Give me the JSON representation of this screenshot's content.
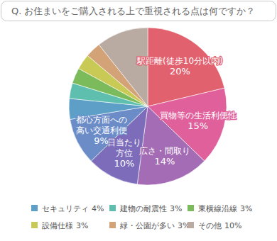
{
  "chart_data": {
    "type": "pie",
    "title": "Q. お住まいをご購入される上で重視される点は何ですか？",
    "categories": [
      "駅距離(徒歩10分以内)",
      "買物等の生活利便性",
      "広さ・間取り",
      "日当たり\n方位",
      "都心方面への\n高い交通利便",
      "セキュリティ",
      "建物の耐震性",
      "東横線沿線",
      "設備仕様",
      "緑・公園が多い",
      "その他"
    ],
    "values": [
      20,
      15,
      14,
      10,
      9,
      4,
      3,
      3,
      3,
      3,
      10
    ],
    "value_labels": [
      "20%",
      "15%",
      "14%",
      "10%",
      "9%",
      "4%",
      "3%",
      "3%",
      "3%",
      "3%",
      "10%"
    ],
    "colors": [
      "#e2616f",
      "#e0609c",
      "#a46cb4",
      "#7c6cba",
      "#6c8cc8",
      "#5d9fc6",
      "#5fbfae",
      "#7cbb5c",
      "#c9c955",
      "#d3a377",
      "#b9aaa2"
    ],
    "data_labels": true,
    "legend": "bottom"
  }
}
